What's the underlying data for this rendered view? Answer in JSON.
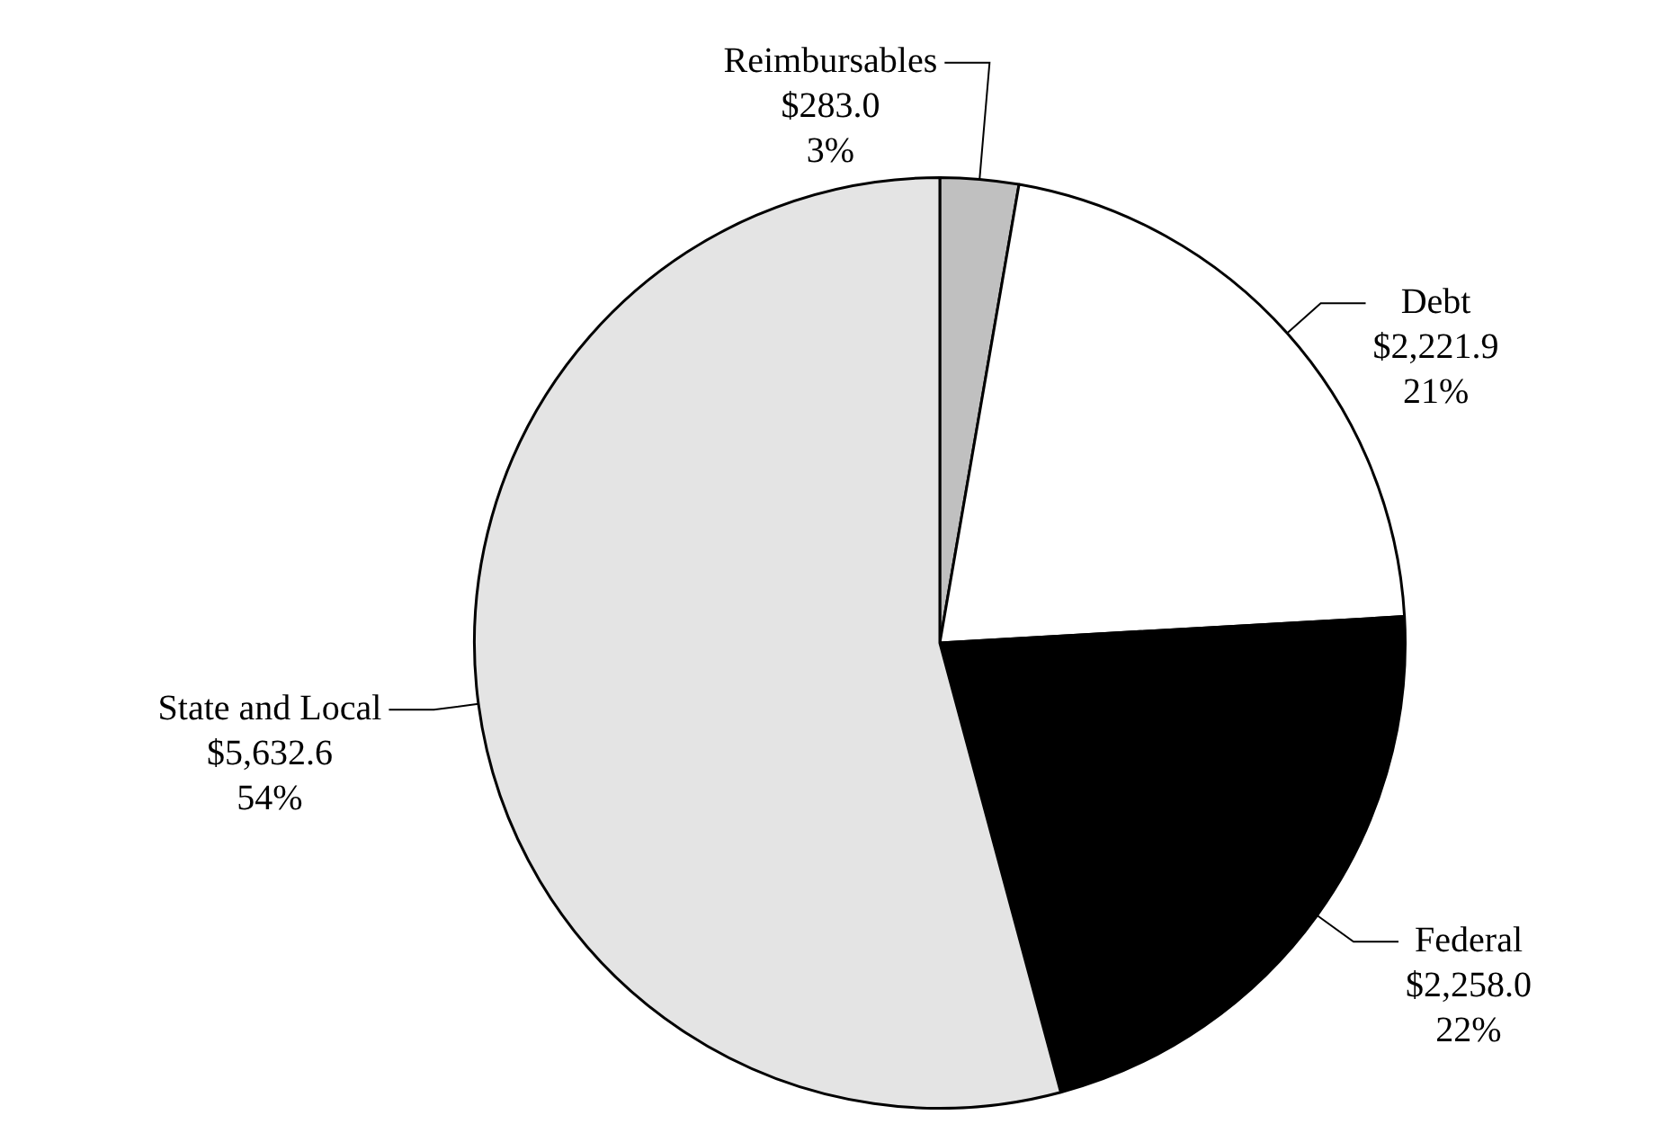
{
  "chart_data": {
    "type": "pie",
    "categories": [
      "Reimbursables",
      "Debt",
      "Federal",
      "State and Local"
    ],
    "values": [
      283.0,
      2221.9,
      2258.0,
      5632.6
    ],
    "colors": [
      "#c0c0c0",
      "#ffffff",
      "#000000",
      "#e4e4e4"
    ],
    "value_labels": [
      "$283.0\n3%",
      "$2,221.9\n21%",
      "$2,258.0\n22%",
      "$5,632.6\n54%"
    ],
    "legend": false
  }
}
